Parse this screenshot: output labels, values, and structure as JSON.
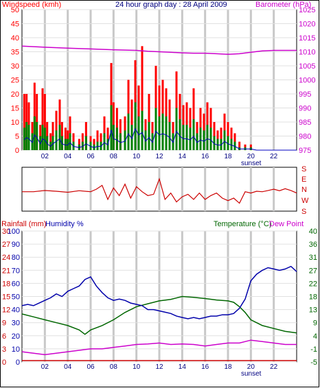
{
  "header": {
    "left_label": "Windspeed (kmh)",
    "title": "24 hour graph day : 28 April 2009",
    "right_label": "Barometer (hPa)"
  },
  "colors": {
    "windspeed": "#ff0000",
    "gust": "#ff0000",
    "wind_avg": "#008000",
    "wind_min": "#0000c0",
    "barometer": "#cc00cc",
    "direction": "#cc0000",
    "humidity": "#0000aa",
    "temperature": "#006600",
    "dewpoint": "#cc00cc",
    "rainfall": "#cc0000",
    "grid": "#c8c8c8",
    "axis_text": "#000080"
  },
  "footer": {
    "sunset_label_top": "sunset",
    "sunset_label_bottom": "sunset"
  },
  "direction_panel": {
    "labels": [
      "S",
      "E",
      "N",
      "W",
      "S"
    ]
  },
  "bottom_header": {
    "rainfall": "Rainfall (mm)",
    "humidity": "Humidity %",
    "temperature": "Temperature (°C)",
    "dewpoint": "Dew Point"
  },
  "chart_data": [
    {
      "type": "bar",
      "title": "24 hour graph day : 28 April 2009",
      "ylabel": "Windspeed (kmh)",
      "y2label": "Barometer (hPa)",
      "xlim": [
        0,
        24
      ],
      "ylim": [
        0,
        50
      ],
      "y2lim": [
        975,
        1025
      ],
      "x_ticks": [
        "02",
        "04",
        "06",
        "08",
        "10",
        "12",
        "14",
        "16",
        "18",
        "20",
        "22"
      ],
      "y_ticks": [
        0,
        5,
        10,
        15,
        20,
        25,
        30,
        35,
        40,
        45,
        50
      ],
      "y2_ticks": [
        975,
        980,
        985,
        990,
        995,
        1000,
        1005,
        1010,
        1015,
        1020,
        1025
      ],
      "grid": true,
      "sunset_hour": 20,
      "series": [
        {
          "name": "Barometer (hPa)",
          "type": "line",
          "x": [
            0,
            2,
            4,
            6,
            8,
            10,
            11,
            12,
            13,
            14,
            15,
            16,
            17,
            18,
            19,
            20,
            21,
            22,
            23,
            24
          ],
          "values": [
            1012,
            1011.6,
            1011.3,
            1011,
            1010.7,
            1010.5,
            1010.2,
            1010,
            1009.8,
            1009.6,
            1009.5,
            1009.5,
            1009.3,
            1009.1,
            1009.3,
            1009.8,
            1010.3,
            1010.5,
            1010.5,
            1010.5
          ]
        },
        {
          "name": "Gust",
          "type": "bar",
          "x": [
            0.2,
            0.4,
            0.6,
            0.9,
            1.1,
            1.3,
            1.6,
            1.8,
            2.0,
            2.2,
            2.5,
            2.7,
            3.0,
            3.3,
            3.5,
            3.8,
            4.0,
            4.2,
            4.5,
            5.0,
            5.3,
            5.6,
            6.0,
            6.3,
            6.6,
            6.9,
            7.2,
            7.5,
            7.8,
            8.0,
            8.3,
            8.6,
            9.0,
            9.3,
            9.6,
            9.9,
            10.2,
            10.5,
            10.8,
            11.1,
            11.4,
            11.7,
            12.0,
            12.3,
            12.6,
            12.9,
            13.2,
            13.5,
            13.8,
            14.1,
            14.4,
            14.7,
            15.0,
            15.3,
            15.6,
            15.9,
            16.2,
            16.5,
            16.8,
            17.1,
            17.4,
            17.7,
            18.0,
            18.3,
            18.6,
            19.0,
            19.5,
            20.0,
            20.5,
            21.0,
            22.0,
            23.0,
            24.0
          ],
          "values": [
            20,
            20,
            17,
            10,
            24,
            20,
            9,
            22,
            20,
            10,
            6,
            10,
            14,
            18,
            10,
            8,
            7,
            12,
            6,
            4,
            6,
            10,
            5,
            4,
            7,
            6,
            12,
            8,
            31,
            17,
            15,
            11,
            12,
            25,
            18,
            32,
            23,
            37,
            11,
            20,
            10,
            30,
            23,
            25,
            22,
            18,
            10,
            28,
            20,
            16,
            17,
            15,
            22,
            10,
            15,
            13,
            17,
            15,
            10,
            7,
            8,
            13,
            10,
            8,
            6,
            3,
            2,
            2,
            0,
            0,
            0,
            0,
            0
          ]
        },
        {
          "name": "Average speed",
          "type": "bar",
          "x": [
            0.2,
            0.4,
            0.6,
            0.9,
            1.1,
            1.3,
            1.6,
            1.8,
            2.0,
            2.2,
            2.5,
            2.7,
            3.0,
            3.3,
            3.5,
            3.8,
            4.0,
            4.2,
            4.5,
            5.0,
            5.3,
            5.6,
            6.0,
            6.3,
            6.6,
            6.9,
            7.2,
            7.5,
            7.8,
            8.0,
            8.3,
            8.6,
            9.0,
            9.3,
            9.6,
            9.9,
            10.2,
            10.5,
            10.8,
            11.1,
            11.4,
            11.7,
            12.0,
            12.3,
            12.6,
            12.9,
            13.2,
            13.5,
            13.8,
            14.1,
            14.4,
            14.7,
            15.0,
            15.3,
            15.6,
            15.9,
            16.2,
            16.5,
            16.8,
            17.1,
            17.4,
            17.7,
            18.0,
            18.3,
            18.6,
            19.0,
            19.5,
            20.0,
            20.5,
            21.0,
            22.0,
            23.0,
            24.0
          ],
          "values": [
            8,
            10,
            9,
            6,
            12,
            10,
            5,
            9,
            8,
            5,
            3,
            5,
            7,
            9,
            5,
            4,
            4,
            6,
            3,
            2,
            3,
            5,
            3,
            2,
            3,
            3,
            6,
            4,
            16,
            9,
            8,
            6,
            7,
            13,
            9,
            17,
            12,
            14,
            7,
            10,
            6,
            15,
            12,
            13,
            12,
            10,
            6,
            15,
            11,
            9,
            9,
            8,
            11,
            6,
            8,
            7,
            9,
            8,
            5,
            4,
            4,
            7,
            5,
            4,
            3,
            1,
            1,
            1,
            0,
            0,
            0,
            0,
            0
          ]
        }
      ]
    },
    {
      "type": "line",
      "title": "Wind direction",
      "y_ticks": [
        "S",
        "E",
        "N",
        "W",
        "S"
      ],
      "xlim": [
        0,
        24
      ],
      "series": [
        {
          "name": "Wind direction",
          "x": [
            0,
            1,
            2,
            3,
            4,
            5,
            6,
            6.5,
            7,
            7.5,
            8,
            8.5,
            9,
            9.5,
            10,
            10.5,
            11,
            11.5,
            12,
            12.5,
            13,
            13.5,
            14,
            14.5,
            15,
            15.5,
            16,
            16.5,
            17,
            17.5,
            18,
            18.5,
            19,
            19.5,
            20,
            20.5,
            21,
            21.5,
            22,
            22.5,
            23,
            23.5,
            24
          ],
          "values": [
            200,
            200,
            195,
            198,
            202,
            196,
            200,
            190,
            175,
            230,
            185,
            215,
            170,
            225,
            180,
            200,
            215,
            210,
            150,
            230,
            205,
            240,
            220,
            210,
            230,
            205,
            230,
            215,
            205,
            225,
            235,
            225,
            245,
            200,
            205,
            198,
            200,
            195,
            190,
            196,
            188,
            195,
            205
          ]
        }
      ]
    },
    {
      "type": "line",
      "title": "",
      "xlim": [
        0,
        24
      ],
      "sunset_hour": 20,
      "x_ticks": [
        "02",
        "04",
        "06",
        "08",
        "10",
        "12",
        "14",
        "16",
        "18",
        "20",
        "22"
      ],
      "ylabel_left_outer": "Rainfall (mm)",
      "ylabel_left_inner": "Humidity %",
      "ylabel_right": "Temperature (°C)",
      "ylabel_right_outer": "Dew Point",
      "rain_ticks": [
        0,
        3,
        6,
        9,
        12,
        15,
        18,
        21,
        24,
        27,
        30
      ],
      "humidity_ticks": [
        0,
        10,
        20,
        30,
        40,
        50,
        60,
        70,
        80,
        90,
        100
      ],
      "temperature_ticks": [
        -5,
        -1,
        4,
        9,
        13,
        18,
        22,
        27,
        31,
        36,
        40
      ],
      "dewpoint_ticks": [
        -5,
        0,
        4,
        9,
        13,
        18,
        22,
        27
      ],
      "ylim_humidity": [
        0,
        100
      ],
      "ylim_temperature": [
        -5,
        40
      ],
      "grid": true,
      "series": [
        {
          "name": "Humidity %",
          "x": [
            0,
            0.5,
            1,
            1.5,
            2,
            2.5,
            3,
            3.5,
            4,
            4.5,
            5,
            5.5,
            6,
            6.5,
            7,
            7.5,
            8,
            8.5,
            9,
            9.5,
            10,
            10.5,
            11,
            11.5,
            12,
            12.5,
            13,
            13.5,
            14,
            14.5,
            15,
            15.5,
            16,
            16.5,
            17,
            17.5,
            18,
            18.5,
            19,
            19.5,
            20,
            20.5,
            21,
            21.5,
            22,
            22.5,
            23,
            23.5,
            24
          ],
          "values": [
            43,
            44,
            43,
            45,
            47,
            49,
            52,
            50,
            54,
            56,
            58,
            63,
            65,
            58,
            53,
            49,
            47,
            48,
            47,
            45,
            44,
            43,
            40,
            40,
            39,
            38,
            37,
            35,
            34,
            33,
            34,
            33,
            34,
            35,
            35,
            36,
            36,
            37,
            41,
            48,
            62,
            67,
            70,
            72,
            71,
            70,
            71,
            73,
            69
          ]
        },
        {
          "name": "Temperature (°C)",
          "x": [
            0,
            1,
            2,
            3,
            4,
            5,
            5.5,
            6,
            7,
            8,
            9,
            10,
            11,
            12,
            13,
            14,
            15,
            16,
            17,
            18,
            18.5,
            19,
            19.5,
            20,
            21,
            22,
            23,
            24
          ],
          "values": [
            11.5,
            10.5,
            9.5,
            8.5,
            7.5,
            6,
            4.5,
            6,
            7.5,
            9.5,
            12,
            14,
            15,
            16,
            16.5,
            17.5,
            17.2,
            16.8,
            16.3,
            16,
            15.5,
            14,
            12,
            9.5,
            7.5,
            6.5,
            5.5,
            5
          ]
        },
        {
          "name": "Dew Point",
          "x": [
            0,
            1,
            2,
            3,
            4,
            5,
            6,
            7,
            8,
            9,
            10,
            11,
            12,
            13,
            14,
            15,
            16,
            17,
            18,
            19,
            20,
            21,
            22,
            23,
            24
          ],
          "values": [
            -1.5,
            -2,
            -2.5,
            -2,
            -1.5,
            -1,
            -0.5,
            -0.5,
            0,
            0.5,
            1,
            1.2,
            1.5,
            1,
            1.2,
            1,
            0.5,
            1,
            1.5,
            1.5,
            2.5,
            2,
            1.5,
            1,
            1
          ]
        },
        {
          "name": "Rainfall (mm)",
          "x": [
            0,
            24
          ],
          "values": [
            0,
            0
          ]
        }
      ]
    }
  ]
}
